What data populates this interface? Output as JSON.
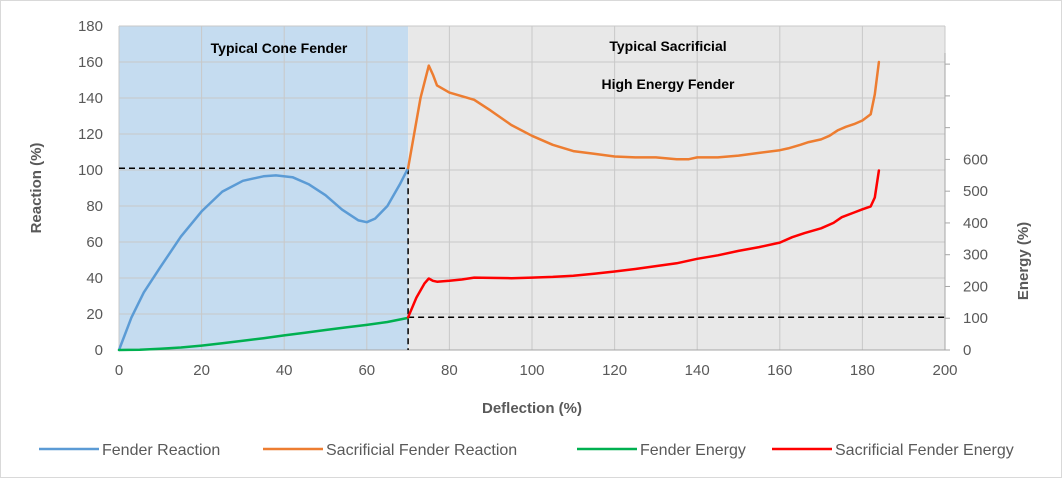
{
  "chart_data": {
    "type": "line",
    "xlabel": "Deflection (%)",
    "ylabel": "Reaction (%)",
    "y2label": "Energy (%)",
    "xlim": [
      0,
      200
    ],
    "ylim": [
      0,
      180
    ],
    "y2lim": [
      0,
      680
    ],
    "x_ticks": [
      "0",
      "20",
      "40",
      "60",
      "80",
      "100",
      "120",
      "140",
      "160",
      "180",
      "200"
    ],
    "y_ticks": [
      "0",
      "20",
      "40",
      "60",
      "80",
      "100",
      "120",
      "140",
      "160",
      "180"
    ],
    "y2_ticks": [
      "0",
      "100",
      "200",
      "300",
      "400",
      "500",
      "600"
    ],
    "grid": true,
    "legend_position": "bottom",
    "regions": [
      {
        "label": "Typical Cone Fender",
        "x_range": [
          0,
          70
        ],
        "color": "#c5dcf0"
      },
      {
        "label_lines": [
          "Typical Sacrificial",
          "High Energy Fender"
        ],
        "x_range": [
          70,
          200
        ],
        "color": "#e8e8e8"
      }
    ],
    "reference_lines": {
      "reaction_level": 101,
      "deflection_level": 70,
      "energy_level": 103
    },
    "series": [
      {
        "name": "Fender Reaction",
        "axis": "left",
        "color": "#5b9bd5",
        "x": [
          0,
          3,
          6,
          10,
          15,
          20,
          25,
          30,
          35,
          38,
          42,
          46,
          50,
          54,
          58,
          60,
          62,
          65,
          68,
          70
        ],
        "y": [
          0,
          18,
          32,
          46,
          63,
          77,
          88,
          94,
          96.5,
          97,
          96,
          92,
          86,
          78,
          72,
          71,
          73,
          80,
          92,
          101
        ]
      },
      {
        "name": "Sacrificial Fender Reaction",
        "axis": "left",
        "color": "#ed7d31",
        "x": [
          70,
          73,
          75,
          76,
          77,
          80,
          83,
          86,
          90,
          95,
          100,
          105,
          110,
          115,
          120,
          125,
          130,
          135,
          138,
          140,
          145,
          150,
          155,
          160,
          162,
          165,
          167,
          170,
          172,
          174,
          176,
          178,
          180,
          182,
          183,
          184
        ],
        "y": [
          101,
          140,
          158,
          153,
          147,
          143,
          141,
          139,
          133,
          125,
          119,
          114,
          110.5,
          109,
          107.5,
          107,
          107,
          106,
          106,
          107,
          107,
          108,
          109.5,
          111,
          112,
          114,
          115.5,
          117,
          119,
          122,
          124,
          125.5,
          127.5,
          131,
          142,
          160
        ]
      },
      {
        "name": "Fender Energy",
        "axis": "right",
        "color": "#00b050",
        "x": [
          0,
          5,
          10,
          15,
          20,
          25,
          30,
          35,
          40,
          45,
          50,
          55,
          60,
          65,
          70
        ],
        "y": [
          0,
          1,
          4,
          8,
          14,
          21,
          29,
          37,
          46,
          54,
          63,
          71,
          79,
          88,
          101
        ]
      },
      {
        "name": "Sacrificial Fender Energy",
        "axis": "right",
        "color": "#ff0000",
        "x": [
          70,
          72,
          74,
          75,
          76,
          77,
          80,
          83,
          86,
          90,
          95,
          100,
          105,
          110,
          115,
          120,
          125,
          130,
          135,
          140,
          145,
          150,
          155,
          160,
          163,
          166,
          170,
          173,
          175,
          178,
          180,
          182,
          183,
          184
        ],
        "y": [
          103,
          165,
          210,
          225,
          218,
          215,
          218,
          222,
          228,
          227,
          226,
          228,
          230,
          234,
          240,
          247,
          255,
          264,
          273,
          287,
          298,
          312,
          324,
          338,
          355,
          368,
          383,
          400,
          418,
          433,
          443,
          452,
          480,
          565
        ]
      }
    ]
  }
}
